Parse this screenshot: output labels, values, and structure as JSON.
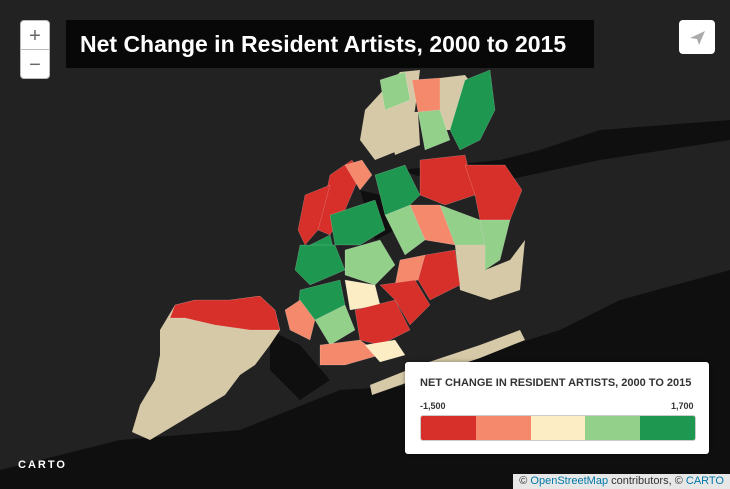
{
  "header": {
    "title": "Net Change in Resident Artists, 2000 to 2015"
  },
  "zoom": {
    "in": "+",
    "out": "−"
  },
  "legend": {
    "title": "NET CHANGE IN RESIDENT ARTISTS, 2000 TO 2015",
    "min": {
      "value": -1500,
      "label": "-1,500"
    },
    "max": {
      "value": 1700,
      "label": "1,700"
    },
    "colors": [
      "#d7302a",
      "#f4896b",
      "#fdedc5",
      "#93d08a",
      "#1e9850"
    ],
    "no_data_color": "#d6c9a7"
  },
  "logo": "CARTO",
  "attribution": {
    "prefix": "©",
    "osm": "OpenStreetMap",
    "middle": "contributors, ©",
    "carto": "CARTO"
  }
}
